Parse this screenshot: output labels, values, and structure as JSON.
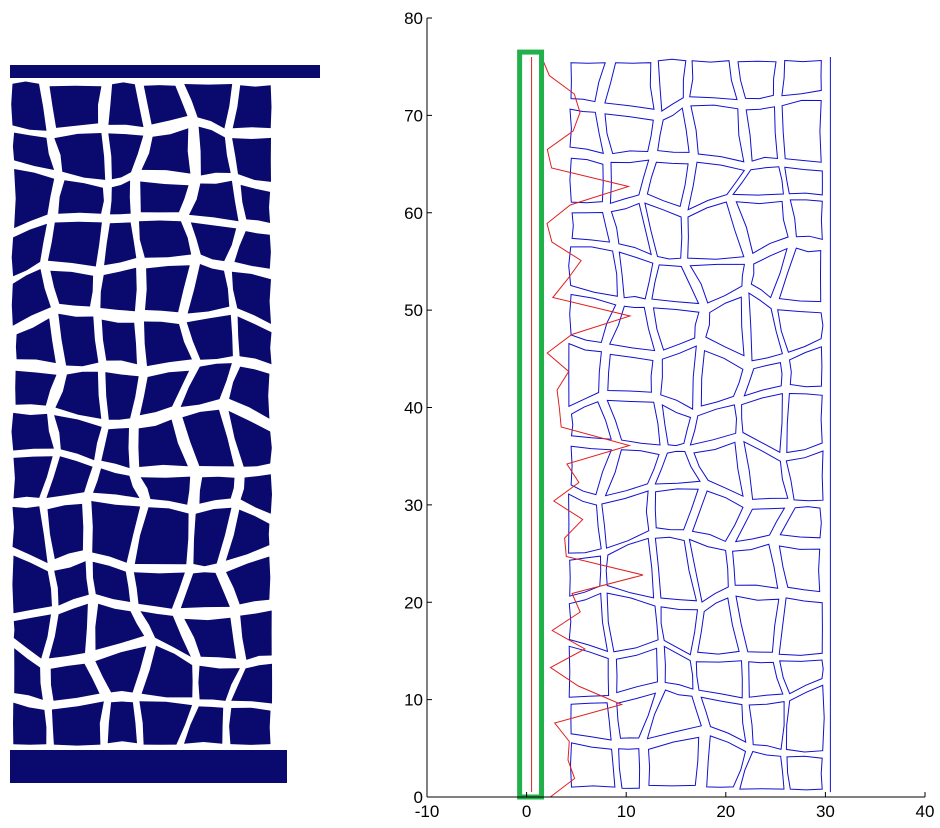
{
  "chart_data": {
    "type": "contour",
    "xlim": [
      -10,
      40
    ],
    "xticks": [
      -10,
      0,
      10,
      20,
      30,
      40
    ],
    "ylim": [
      0,
      80
    ],
    "yticks": [
      0,
      10,
      20,
      30,
      40,
      50,
      60,
      70,
      80
    ]
  }
}
